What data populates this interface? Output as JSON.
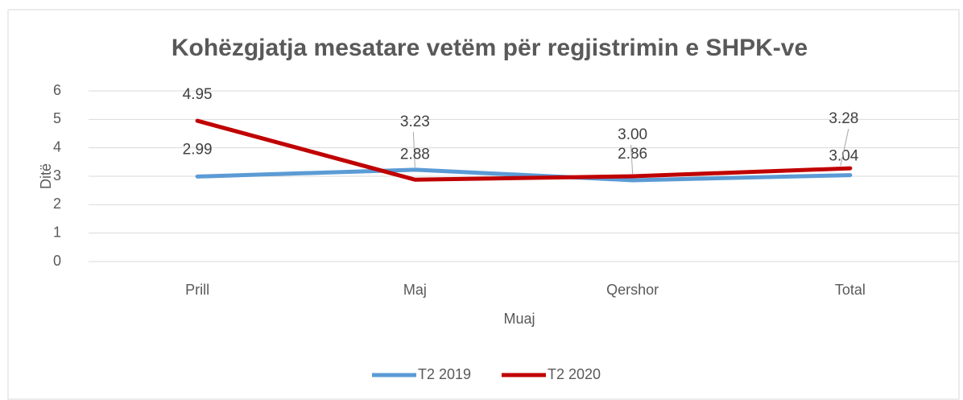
{
  "chart_data": {
    "type": "line",
    "title": "Kohëzgjatja mesatare vetëm për regjistrimin e SHPK-ve",
    "x_label": "Muaj",
    "y_label": "Ditë",
    "categories": [
      "Prill",
      "Maj",
      "Qershor",
      "Total"
    ],
    "series": [
      {
        "name": "T2 2019",
        "color": "#5b9bd5",
        "values": [
          2.99,
          3.23,
          2.86,
          3.04
        ],
        "value_labels": [
          "2.99",
          "3.23",
          "2.86",
          "3.04"
        ]
      },
      {
        "name": "T2 2020",
        "color": "#c00000",
        "values": [
          4.95,
          2.88,
          3,
          3.28
        ],
        "value_labels": [
          "4.95",
          "2.88",
          "3.00",
          "3.28"
        ]
      }
    ],
    "ylim": [
      0,
      6
    ],
    "yticks": [
      0,
      1,
      2,
      3,
      4,
      5,
      6
    ],
    "grid": true,
    "legend": "bottom"
  }
}
